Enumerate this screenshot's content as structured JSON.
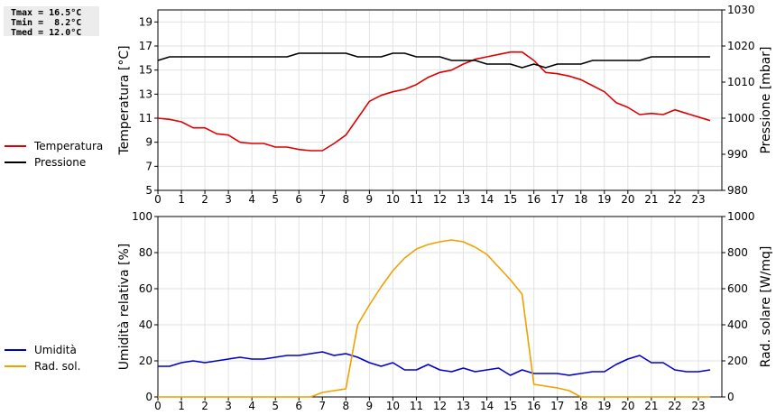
{
  "stats": {
    "tmax": "Tmax = 16.5°C",
    "tmin": "Tmin =  8.2°C",
    "tmed": "Tmed = 12.0°C"
  },
  "legend_top": [
    {
      "label": "Temperatura",
      "color": "#e00000"
    },
    {
      "label": "Pressione",
      "color": "#000000"
    }
  ],
  "legend_bottom": [
    {
      "label": "Umidità",
      "color": "#0000cc"
    },
    {
      "label": "Rad. sol.",
      "color": "#f0a000"
    }
  ],
  "chart_data": [
    {
      "type": "line",
      "xlim": [
        0,
        24
      ],
      "xticks": [
        0,
        1,
        2,
        3,
        4,
        5,
        6,
        7,
        8,
        9,
        10,
        11,
        12,
        13,
        14,
        15,
        16,
        17,
        18,
        19,
        20,
        21,
        22,
        23
      ],
      "grid": true,
      "ylabel": "Temperatura [°C]",
      "ylim": [
        5,
        20
      ],
      "yticks": [
        5,
        7,
        9,
        11,
        13,
        15,
        17,
        19
      ],
      "y2label": "Pressione [mbar]",
      "y2lim": [
        980,
        1030
      ],
      "y2ticks": [
        980,
        990,
        1000,
        1010,
        1020,
        1030
      ],
      "series": [
        {
          "name": "Temperatura",
          "color": "#e00000",
          "axis": "left",
          "x": [
            0,
            0.5,
            1,
            1.5,
            2,
            2.5,
            3,
            3.5,
            4,
            4.5,
            5,
            5.5,
            6,
            6.5,
            7,
            7.5,
            8,
            8.5,
            9,
            9.5,
            10,
            10.5,
            11,
            11.5,
            12,
            12.5,
            13,
            13.5,
            14,
            14.5,
            15,
            15.5,
            16,
            16.5,
            17,
            17.5,
            18,
            18.5,
            19,
            19.5,
            20,
            20.5,
            21,
            21.5,
            22,
            22.5,
            23,
            23.5
          ],
          "values": [
            11.0,
            10.9,
            10.7,
            10.2,
            10.2,
            9.7,
            9.6,
            9.0,
            8.9,
            8.9,
            8.6,
            8.6,
            8.4,
            8.3,
            8.3,
            8.9,
            9.6,
            11.0,
            12.4,
            12.9,
            13.2,
            13.4,
            13.8,
            14.4,
            14.8,
            15.0,
            15.5,
            15.9,
            16.1,
            16.3,
            16.5,
            16.5,
            15.8,
            14.8,
            14.7,
            14.5,
            14.2,
            13.7,
            13.2,
            12.3,
            11.9,
            11.3,
            11.4,
            11.3,
            11.7,
            11.4,
            11.1,
            10.8
          ]
        },
        {
          "name": "Pressione",
          "color": "#000000",
          "axis": "right",
          "x": [
            0,
            0.5,
            1,
            1.5,
            2,
            2.5,
            3,
            3.5,
            4,
            4.5,
            5,
            5.5,
            6,
            6.5,
            7,
            7.5,
            8,
            8.5,
            9,
            9.5,
            10,
            10.5,
            11,
            11.5,
            12,
            12.5,
            13,
            13.5,
            14,
            14.5,
            15,
            15.5,
            16,
            16.5,
            17,
            17.5,
            18,
            18.5,
            19,
            19.5,
            20,
            20.5,
            21,
            21.5,
            22,
            22.5,
            23,
            23.5
          ],
          "values": [
            1016,
            1017,
            1017,
            1017,
            1017,
            1017,
            1017,
            1017,
            1017,
            1017,
            1017,
            1017,
            1018,
            1018,
            1018,
            1018,
            1018,
            1017,
            1017,
            1017,
            1018,
            1018,
            1017,
            1017,
            1017,
            1016,
            1016,
            1016,
            1015,
            1015,
            1015,
            1014,
            1015,
            1014,
            1015,
            1015,
            1015,
            1016,
            1016,
            1016,
            1016,
            1016,
            1017,
            1017,
            1017,
            1017,
            1017,
            1017
          ]
        }
      ]
    },
    {
      "type": "line",
      "xlim": [
        0,
        24
      ],
      "xticks": [
        0,
        1,
        2,
        3,
        4,
        5,
        6,
        7,
        8,
        9,
        10,
        11,
        12,
        13,
        14,
        15,
        16,
        17,
        18,
        19,
        20,
        21,
        22,
        23
      ],
      "grid": true,
      "ylabel": "Umidità relativa [%]",
      "ylim": [
        0,
        100
      ],
      "yticks": [
        0,
        20,
        40,
        60,
        80,
        100
      ],
      "y2label": "Rad. solare [W/mq]",
      "y2lim": [
        0,
        1000
      ],
      "y2ticks": [
        0,
        200,
        400,
        600,
        800,
        1000
      ],
      "series": [
        {
          "name": "Umidità",
          "color": "#0000cc",
          "axis": "left",
          "x": [
            0,
            0.5,
            1,
            1.5,
            2,
            2.5,
            3,
            3.5,
            4,
            4.5,
            5,
            5.5,
            6,
            6.5,
            7,
            7.5,
            8,
            8.5,
            9,
            9.5,
            10,
            10.5,
            11,
            11.5,
            12,
            12.5,
            13,
            13.5,
            14,
            14.5,
            15,
            15.5,
            16,
            16.5,
            17,
            17.5,
            18,
            18.5,
            19,
            19.5,
            20,
            20.5,
            21,
            21.5,
            22,
            22.5,
            23,
            23.5
          ],
          "values": [
            17,
            17,
            19,
            20,
            19,
            20,
            21,
            22,
            21,
            21,
            22,
            23,
            23,
            24,
            25,
            23,
            24,
            22,
            19,
            17,
            19,
            15,
            15,
            18,
            15,
            14,
            16,
            14,
            15,
            16,
            12,
            15,
            13,
            13,
            13,
            12,
            13,
            14,
            14,
            18,
            21,
            23,
            19,
            19,
            15,
            14,
            14,
            15
          ]
        },
        {
          "name": "Rad. sol.",
          "color": "#f0a000",
          "axis": "right",
          "x": [
            0,
            1,
            2,
            3,
            4,
            5,
            6,
            6.5,
            7,
            7.5,
            8,
            8.5,
            9,
            9.5,
            10,
            10.5,
            11,
            11.5,
            12,
            12.5,
            13,
            13.5,
            14,
            14.5,
            15,
            15.5,
            16,
            16.5,
            17,
            17.5,
            18,
            18.5,
            19,
            20,
            21,
            22,
            23,
            23.5
          ],
          "values": [
            0,
            0,
            0,
            0,
            0,
            0,
            0,
            0,
            25,
            35,
            45,
            400,
            510,
            610,
            700,
            770,
            820,
            845,
            860,
            870,
            860,
            830,
            790,
            720,
            650,
            570,
            70,
            60,
            50,
            35,
            0,
            0,
            0,
            0,
            0,
            0,
            0,
            0
          ]
        }
      ]
    }
  ]
}
